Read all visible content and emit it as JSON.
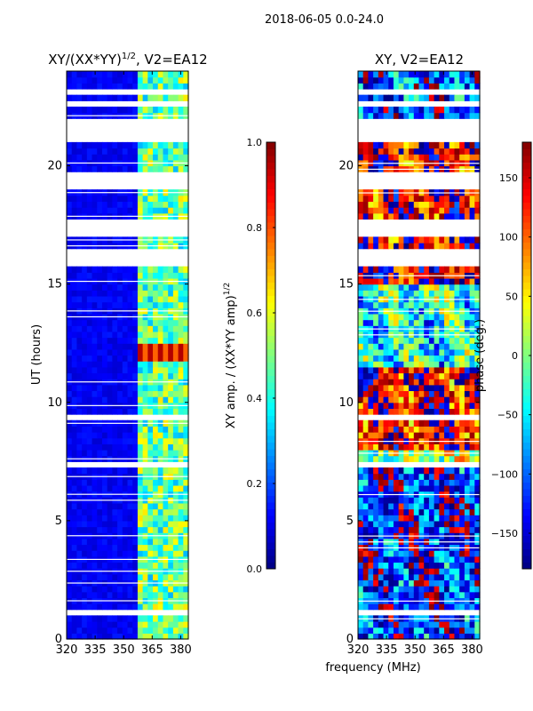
{
  "suptitle": "2018-06-05 0.0-24.0",
  "shared_xlabel": "frequency (MHz)",
  "chart_data": [
    {
      "type": "heatmap",
      "title": "XY/(XX*YY)^1/2, V2=EA12",
      "title_main": "XY/(XX*YY)",
      "title_sup": "1/2",
      "title_tail": ", V2=EA12",
      "ylabel": "UT (hours)",
      "xlim": [
        320,
        384
      ],
      "ylim": [
        0,
        24
      ],
      "xticks": [
        320,
        335,
        350,
        365,
        380
      ],
      "yticks": [
        0,
        5,
        10,
        15,
        20
      ],
      "colorbar": {
        "label_main": "XY amp. / (XX*YY amp)",
        "label_sup": "1/2",
        "range": [
          0.0,
          1.0
        ],
        "ticks": [
          "0.0",
          "0.2",
          "0.4",
          "0.6",
          "0.8",
          "1.0"
        ],
        "tick_values": [
          0.0,
          0.2,
          0.4,
          0.6,
          0.8,
          1.0
        ],
        "colormap": "jet"
      },
      "gaps_hours": [
        [
          21.0,
          22.0
        ],
        [
          19.1,
          19.8
        ],
        [
          17.1,
          17.8
        ],
        [
          15.8,
          16.4
        ],
        [
          14.9,
          15.1
        ],
        [
          7.2,
          7.6
        ],
        [
          9.2,
          9.5
        ],
        [
          0.9,
          1.2
        ],
        [
          23.1,
          23.3
        ],
        [
          22.6,
          22.7
        ]
      ],
      "notable_feature": {
        "band_mhz": [
          357,
          383
        ],
        "high_coherence_hours": [
          11.8,
          12.6
        ]
      }
    },
    {
      "type": "heatmap",
      "title": "XY, V2=EA12",
      "xlabel": "frequency (MHz)",
      "xlim": [
        320,
        384
      ],
      "ylim": [
        0,
        24
      ],
      "xticks": [
        320,
        335,
        350,
        365,
        380
      ],
      "yticks": [
        0,
        5,
        10,
        15,
        20
      ],
      "colorbar": {
        "label": "phase (deg.)",
        "range": [
          -180,
          180
        ],
        "ticks": [
          "−150",
          "−100",
          "−50",
          "0",
          "50",
          "100",
          "150"
        ],
        "tick_values": [
          -150,
          -100,
          -50,
          0,
          50,
          100,
          150
        ],
        "colormap": "jet"
      },
      "gaps_hours": [
        [
          21.0,
          22.0
        ],
        [
          19.1,
          19.8
        ],
        [
          17.1,
          17.8
        ],
        [
          15.8,
          16.4
        ],
        [
          14.9,
          15.1
        ],
        [
          7.2,
          7.6
        ],
        [
          9.2,
          9.5
        ],
        [
          0.9,
          1.2
        ],
        [
          23.1,
          23.3
        ],
        [
          22.6,
          22.7
        ]
      ],
      "phase_regions": [
        {
          "hours": [
            0,
            3.5
          ],
          "phase_deg": -120
        },
        {
          "hours": [
            3.5,
            7.2
          ],
          "phase_deg": -130
        },
        {
          "hours": [
            8.0,
            11.5
          ],
          "phase_deg": 140
        },
        {
          "hours": [
            11.5,
            15.0
          ],
          "phase_deg": -40
        },
        {
          "hours": [
            15.0,
            21.0
          ],
          "phase_deg": 150
        },
        {
          "hours": [
            22.0,
            24.0
          ],
          "phase_deg": -110
        }
      ]
    }
  ]
}
